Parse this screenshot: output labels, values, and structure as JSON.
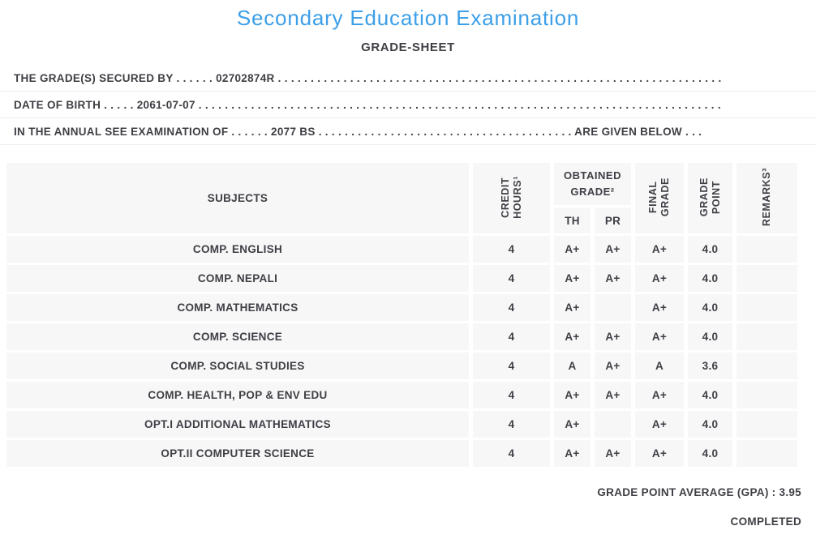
{
  "title": "Secondary Education Examination",
  "subtitle": "GRADE-SHEET",
  "info_lines": [
    "THE GRADE(S) SECURED BY . . . . . . 02702874R . . . . . . . . . . . . . . . . . . . . . . . . . . . . . . . . . . . . . . . . . . . . . . . . . . . . . . . . . . . . . . . . . . . . . . . . . . .",
    "DATE OF BIRTH . . . . . 2061-07-07 . . . . . . . . . . . . . . . . . . . . . . . . . . . . . . . . . . . . . . . . . . . . . . . . . . . . . . . . . . . . . . . . . . . . . . . . . . . . . . . . .",
    "IN THE ANNUAL SEE EXAMINATION OF . . . . . . 2077 BS . . . . . . . . . . . . . . . . . . . . . . . . . . . . . . . . . . . . . . . ARE GIVEN BELOW . . ."
  ],
  "table": {
    "headers": {
      "subjects": "SUBJECTS",
      "credit_hours": {
        "line1": "CREDIT",
        "line2": "HOURS¹"
      },
      "obtained_grade": {
        "line1": "OBTAINED",
        "line2": "GRADE²"
      },
      "th": "TH",
      "pr": "PR",
      "final_grade": {
        "line1": "FINAL",
        "line2": "GRADE"
      },
      "grade_point": {
        "line1": "GRADE",
        "line2": "POINT"
      },
      "remarks": "REMARKS³"
    },
    "rows": [
      {
        "subject": "COMP. ENGLISH",
        "credit": "4",
        "th": "A+",
        "pr": "A+",
        "final": "A+",
        "point": "4.0",
        "remarks": ""
      },
      {
        "subject": "COMP. NEPALI",
        "credit": "4",
        "th": "A+",
        "pr": "A+",
        "final": "A+",
        "point": "4.0",
        "remarks": ""
      },
      {
        "subject": "COMP. MATHEMATICS",
        "credit": "4",
        "th": "A+",
        "pr": "",
        "final": "A+",
        "point": "4.0",
        "remarks": ""
      },
      {
        "subject": "COMP. SCIENCE",
        "credit": "4",
        "th": "A+",
        "pr": "A+",
        "final": "A+",
        "point": "4.0",
        "remarks": ""
      },
      {
        "subject": "COMP. SOCIAL STUDIES",
        "credit": "4",
        "th": "A",
        "pr": "A+",
        "final": "A",
        "point": "3.6",
        "remarks": ""
      },
      {
        "subject": "COMP. HEALTH, POP & ENV EDU",
        "credit": "4",
        "th": "A+",
        "pr": "A+",
        "final": "A+",
        "point": "4.0",
        "remarks": ""
      },
      {
        "subject": "OPT.I ADDITIONAL MATHEMATICS",
        "credit": "4",
        "th": "A+",
        "pr": "",
        "final": "A+",
        "point": "4.0",
        "remarks": ""
      },
      {
        "subject": "OPT.II COMPUTER SCIENCE",
        "credit": "4",
        "th": "A+",
        "pr": "A+",
        "final": "A+",
        "point": "4.0",
        "remarks": ""
      }
    ]
  },
  "footer": {
    "gpa_label": "GRADE POINT AVERAGE (GPA) : 3.95",
    "status": "COMPLETED"
  },
  "colors": {
    "accent_blue": "#3c9fe8",
    "text": "#3f3e44",
    "cell_background": "#f7f7f8",
    "line_divider": "#ededef"
  }
}
